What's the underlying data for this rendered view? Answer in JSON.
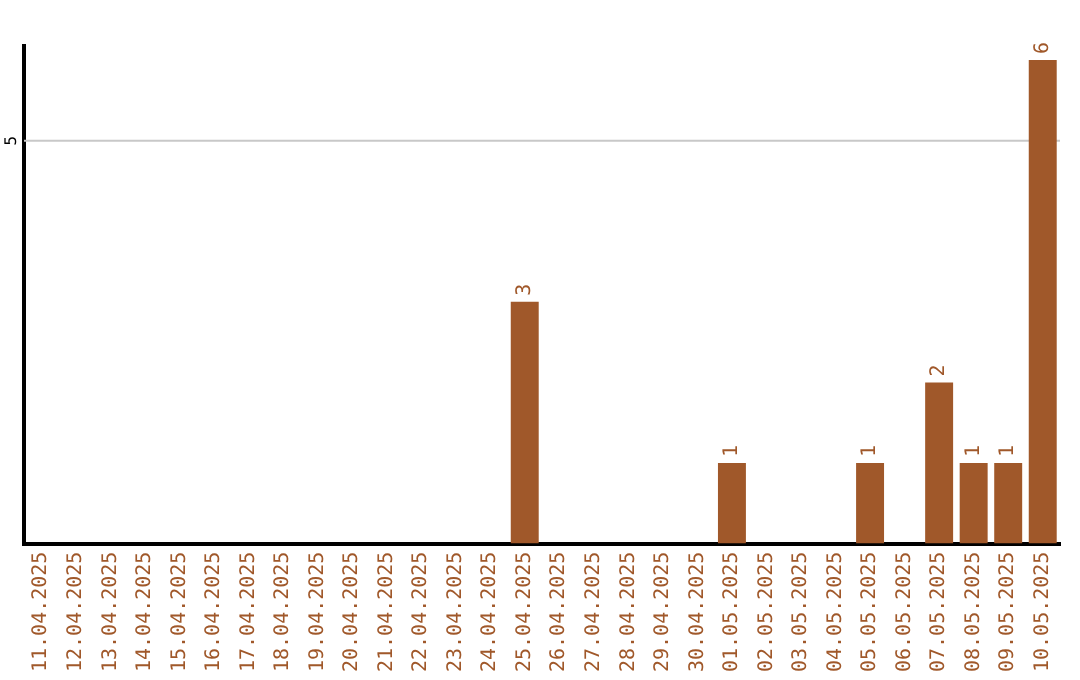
{
  "chart_data": {
    "type": "bar",
    "categories": [
      "11.04.2025",
      "12.04.2025",
      "13.04.2025",
      "14.04.2025",
      "15.04.2025",
      "16.04.2025",
      "17.04.2025",
      "18.04.2025",
      "19.04.2025",
      "20.04.2025",
      "21.04.2025",
      "22.04.2025",
      "23.04.2025",
      "24.04.2025",
      "25.04.2025",
      "26.04.2025",
      "27.04.2025",
      "28.04.2025",
      "29.04.2025",
      "30.04.2025",
      "01.05.2025",
      "02.05.2025",
      "03.05.2025",
      "04.05.2025",
      "05.05.2025",
      "06.05.2025",
      "07.05.2025",
      "08.05.2025",
      "09.05.2025",
      "10.05.2025"
    ],
    "values": [
      null,
      null,
      null,
      null,
      null,
      null,
      null,
      null,
      null,
      null,
      null,
      null,
      null,
      null,
      3,
      null,
      null,
      null,
      null,
      null,
      1,
      null,
      null,
      null,
      1,
      null,
      2,
      1,
      1,
      6
    ],
    "data_labels": true,
    "ylim": [
      0,
      6.2
    ],
    "color": "#a0582a",
    "ref_lines": [
      {
        "axis": "y",
        "value": 5,
        "label": "5",
        "color": "#c8c8c8"
      }
    ],
    "legend": false
  }
}
